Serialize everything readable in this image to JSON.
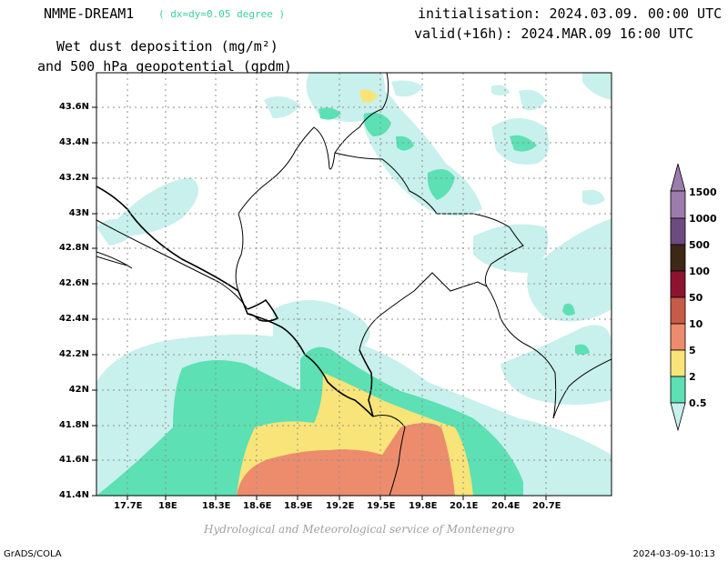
{
  "header": {
    "model": "NMME-DREAM1",
    "resolution": "( dx=dy=0.05 degree )",
    "title_line1": "Wet dust deposition (mg/m²)",
    "title_line2": "and 500 hPa geopotential (gpdm)",
    "init": "initialisation: 2024.03.09. 00:00 UTC",
    "valid": "valid(+16h): 2024.MAR.09 16:00 UTC"
  },
  "map": {
    "lat_ticks": [
      "43.6N",
      "43.4N",
      "43.2N",
      "43N",
      "42.8N",
      "42.6N",
      "42.4N",
      "42.2N",
      "42N",
      "41.8N",
      "41.6N",
      "41.4N"
    ],
    "lon_ticks": [
      "17.7E",
      "18E",
      "18.3E",
      "18.6E",
      "18.9E",
      "19.2E",
      "19.5E",
      "19.8E",
      "20.1E",
      "20.4E",
      "20.7E"
    ],
    "colors": {
      "0.5": "#c8f0ec",
      "2": "#5ce0b4",
      "5": "#f8e478",
      "10": "#ec8c6c",
      "50": "#c85a48",
      "100": "#8c1430",
      "500": "#3c2814",
      "1000": "#6c4c80",
      "1500": "#9c7cac"
    }
  },
  "colorbar": {
    "labels": [
      "1500",
      "1000",
      "500",
      "100",
      "50",
      "10",
      "5",
      "2",
      "0.5"
    ]
  },
  "footer": {
    "credit": "Hydrological and Meteorological service of Montenegro",
    "software": "GrADS/COLA",
    "timestamp": "2024-03-09-10:13"
  }
}
